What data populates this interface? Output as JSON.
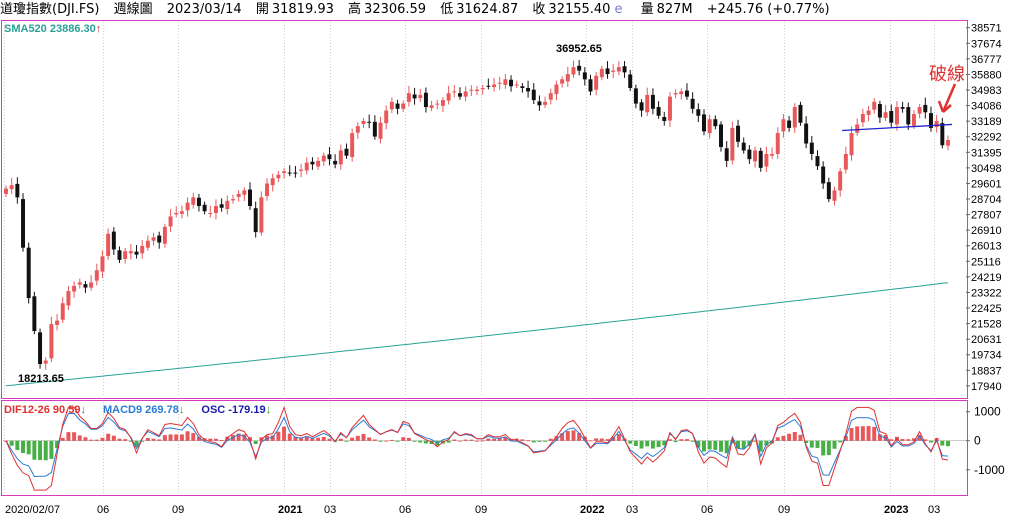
{
  "header": {
    "name": "道瓊指數(DJI.FS)",
    "period": "週線圖",
    "date": "2023/03/14",
    "open_label": "開",
    "open": "31819.93",
    "high_label": "高",
    "high": "32306.59",
    "low_label": "低",
    "low": "31624.87",
    "close_label": "收",
    "close": "32155.40",
    "e_mark": "e",
    "vol_label": "量",
    "vol": "827M",
    "change": "+245.76 (+0.77%)"
  },
  "colors": {
    "up": "#e8585b",
    "down": "#111111",
    "sma": "#2aa198",
    "dif": "#e03030",
    "macd": "#2a7ad6",
    "osc_pos": "#e8585b",
    "osc_neg": "#46b046",
    "trend": "#2222cc",
    "annotation": "#e03030"
  },
  "chart_data": [
    {
      "type": "candlestick",
      "title": "",
      "sma_label": "SMA520 23886.30",
      "sma_arrow": "↑",
      "ylim": [
        17300,
        38900
      ],
      "yticks": [
        "38571",
        "37674",
        "36777",
        "35880",
        "34983",
        "34086",
        "33189",
        "32292",
        "31395",
        "30498",
        "29601",
        "28704",
        "27807",
        "26910",
        "26013",
        "25116",
        "24219",
        "23322",
        "22425",
        "21528",
        "20631",
        "19734",
        "18837",
        "17940"
      ],
      "xticks": [
        "2020/02/07",
        "06",
        "09",
        "2021",
        "03",
        "06",
        "09",
        "2022",
        "03",
        "06",
        "09",
        "2023",
        "03"
      ],
      "annotations": {
        "high": "36952.65",
        "low": "18213.65",
        "break": "破線"
      },
      "sma_start": 17950,
      "sma_end": 23886.3,
      "trendline": [
        32650,
        33000
      ],
      "closes": [
        29300,
        29500,
        28800,
        25900,
        23000,
        21100,
        19200,
        19400,
        21500,
        21700,
        22700,
        23400,
        23700,
        23900,
        23600,
        23900,
        24600,
        25400,
        26700,
        25800,
        25200,
        25700,
        25700,
        25500,
        26000,
        26300,
        26500,
        26200,
        27100,
        27700,
        27900,
        28000,
        28500,
        28800,
        28300,
        28000,
        27900,
        28300,
        28200,
        28600,
        28700,
        29000,
        29200,
        28300,
        26800,
        28800,
        29600,
        29900,
        30100,
        30300,
        30200,
        30200,
        30400,
        30800,
        30700,
        30900,
        31200,
        31000,
        30700,
        31500,
        31200,
        32500,
        32900,
        33200,
        33100,
        32300,
        33100,
        33800,
        34300,
        33900,
        34200,
        34800,
        34500,
        34700,
        34000,
        34100,
        34200,
        34400,
        34800,
        34900,
        34600,
        34900,
        35000,
        35000,
        35100,
        35200,
        35300,
        35400,
        35600,
        35200,
        35300,
        35100,
        34900,
        34400,
        34100,
        34300,
        34800,
        35300,
        35600,
        35900,
        36300,
        36100,
        35600,
        34900,
        35800,
        36200,
        35900,
        36100,
        36300,
        36000,
        35100,
        34200,
        33800,
        34700,
        33900,
        33500,
        33200,
        34600,
        34800,
        34900,
        34600,
        33900,
        33500,
        32600,
        33300,
        32900,
        31700,
        30900,
        32800,
        32000,
        31500,
        31000,
        31500,
        30500,
        31300,
        31300,
        32500,
        33300,
        32800,
        34000,
        33100,
        31900,
        31300,
        30600,
        29600,
        28700,
        29200,
        30300,
        31300,
        32500,
        33000,
        33600,
        33800,
        34300,
        33400,
        33700,
        33100,
        34000,
        33900,
        33000,
        33600,
        34000,
        33700,
        32800,
        33200,
        31800,
        32100
      ]
    },
    {
      "type": "macd",
      "dif_label": "DIF12-26 90.59",
      "dif_arrow": "↓",
      "macd_label": "MACD9 269.78",
      "macd_arrow": "↓",
      "osc_label": "OSC -179.19",
      "osc_arrow": "↓",
      "yticks": [
        "1000",
        "0",
        "-1000"
      ],
      "ylim": [
        -1800,
        1300
      ],
      "dif": 90.59,
      "macd": 269.78,
      "osc": -179.19
    }
  ]
}
